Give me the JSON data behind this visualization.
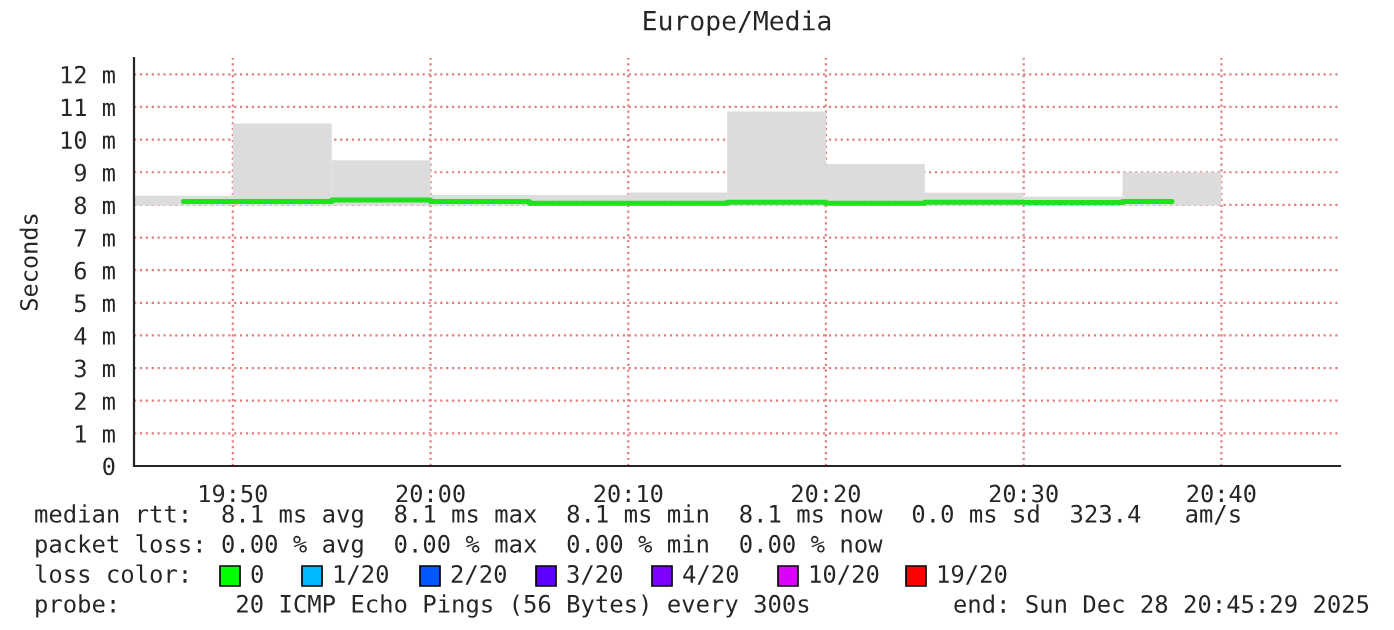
{
  "chart_data": {
    "type": "bar",
    "title": "Europe/Media",
    "ylabel": "Seconds",
    "x": [
      19.7917,
      19.875,
      19.9583,
      20.0417,
      20.125,
      20.2083,
      20.2917,
      20.375,
      20.4583,
      20.5417,
      20.625
    ],
    "series": [
      {
        "color": "#dcdcdc",
        "base": [
          7.98,
          7.98,
          7.98,
          7.98,
          7.98,
          7.98,
          7.98,
          7.98,
          7.98,
          7.98,
          7.98
        ],
        "values": [
          0.3,
          2.51,
          1.39,
          0.32,
          0.32,
          0.4,
          2.88,
          1.27,
          0.39,
          0.27,
          1.02
        ]
      },
      {
        "type": "step",
        "color": "#20e020",
        "values": [
          8.1,
          8.1,
          8.15,
          8.1,
          8.05,
          8.05,
          8.08,
          8.05,
          8.08,
          8.07,
          8.1
        ]
      }
    ],
    "xlim": [
      19.75,
      20.7667
    ],
    "xticks": [
      {
        "value": 19.8333,
        "label": "19:50"
      },
      {
        "value": 20.0,
        "label": "20:00"
      },
      {
        "value": 20.1667,
        "label": "20:10"
      },
      {
        "value": 20.3333,
        "label": "20:20"
      },
      {
        "value": 20.5,
        "label": "20:30"
      },
      {
        "value": 20.6667,
        "label": "20:40"
      }
    ],
    "ylim": [
      0,
      12.5
    ],
    "yticks": [
      {
        "value": 0,
        "label": "0"
      },
      {
        "value": 1,
        "label": "1 m"
      },
      {
        "value": 2,
        "label": "2 m"
      },
      {
        "value": 3,
        "label": "3 m"
      },
      {
        "value": 4,
        "label": "4 m"
      },
      {
        "value": 5,
        "label": "5 m"
      },
      {
        "value": 6,
        "label": "6 m"
      },
      {
        "value": 7,
        "label": "7 m"
      },
      {
        "value": 8,
        "label": "8 m"
      },
      {
        "value": 9,
        "label": "9 m"
      },
      {
        "value": 10,
        "label": "10 m"
      },
      {
        "value": 11,
        "label": "11 m"
      },
      {
        "value": 12,
        "label": "12 m"
      }
    ],
    "grid": true,
    "annotations": [
      "median rtt:  8.1 ms avg  8.1 ms max  8.1 ms min  8.1 ms now  0.0 ms sd  323.4   am/s",
      "packet loss: 0.00 % avg  0.00 % max  0.00 % min  0.00 % now",
      "loss color:",
      "0",
      "1/20",
      "2/20",
      "3/20",
      "4/20",
      "10/20",
      "19/20",
      "probe:        20 ICMP Echo Pings (56 Bytes) every 300s",
      "end: Sun Dec 28 20:45:29 2025"
    ]
  }
}
